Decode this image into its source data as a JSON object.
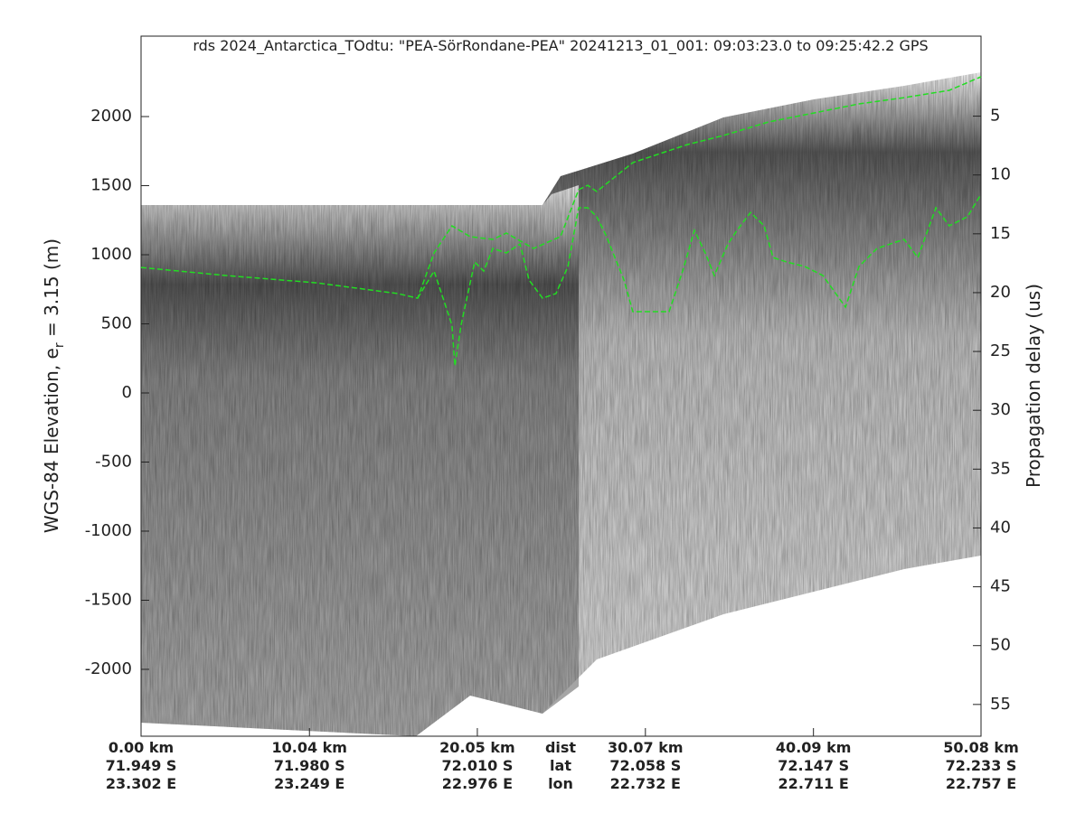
{
  "chart_data": {
    "type": "line",
    "title": "rds 2024_Antarctica_TOdtu: \"PEA-SörRondane-PEA\"  20241213_01_001: 09:03:23.0 to 09:25:42.2 GPS",
    "ylabel": {
      "text": "WGS-84 Elevation, e",
      "sub": "r",
      "rest": " = 3.15 (m)"
    },
    "y2label": "Propagation delay (us)",
    "xlim": [
      0,
      50.08
    ],
    "xticks": [
      {
        "value": 0,
        "label": "0.00 km"
      },
      {
        "value": 10.04,
        "label": "10.04 km"
      },
      {
        "value": 20.05,
        "label": "20.05 km"
      },
      {
        "value": 30.07,
        "label": "30.07 km"
      },
      {
        "value": 40.09,
        "label": "40.09 km"
      },
      {
        "value": 50.08,
        "label": "50.08 km"
      }
    ],
    "lat_labels": [
      "71.949 S",
      "71.980 S",
      "72.010 S",
      "72.058 S",
      "72.147 S",
      "72.233 S"
    ],
    "lon_labels": [
      "23.302 E",
      "23.249 E",
      "22.976 E",
      "22.732 E",
      "22.711 E",
      "22.757 E"
    ],
    "row_names": [
      "dist",
      "lat",
      "lon"
    ],
    "ylim": [
      -2484,
      2582
    ],
    "yticks": [
      -2000,
      -1500,
      -1000,
      -500,
      0,
      500,
      1000,
      1500,
      2000
    ],
    "y2lim": [
      57.7,
      -1.8
    ],
    "y2ticks": [
      5,
      10,
      15,
      20,
      25,
      30,
      35,
      40,
      45,
      50,
      55
    ],
    "series": [
      {
        "name": "surface",
        "color": "#22dd22",
        "dashed": true,
        "x": [
          0,
          5.07,
          10.46,
          15.31,
          16.49,
          17.47,
          18.54,
          19.62,
          20.97,
          21.78,
          23.4,
          25.01,
          26.09,
          26.63,
          27.17,
          29.32,
          32.56,
          34.72,
          37.41,
          40.11,
          42.8,
          45.5,
          48.19,
          50.08
        ],
        "values": [
          908,
          850,
          797,
          719,
          686,
          1013,
          1209,
          1131,
          1111,
          1157,
          1046,
          1131,
          1471,
          1503,
          1458,
          1667,
          1797,
          1863,
          1961,
          2026,
          2092,
          2137,
          2190,
          2288
        ]
      },
      {
        "name": "bed",
        "color": "#22dd22",
        "dashed": true,
        "x": [
          16.49,
          17.47,
          18.54,
          18.71,
          19.08,
          19.89,
          20.43,
          20.97,
          21.78,
          22.59,
          23.13,
          23.94,
          24.74,
          25.45,
          26.09,
          26.63,
          27.17,
          27.71,
          28.79,
          29.32,
          30.4,
          31.48,
          32.29,
          32.99,
          33.64,
          34.18,
          34.99,
          35.53,
          36.34,
          37.15,
          37.68,
          38.49,
          39.57,
          40.65,
          42.0,
          42.8,
          43.88,
          45.5,
          46.31,
          47.39,
          48.19,
          49.27,
          50.08
        ],
        "values": [
          686,
          882,
          490,
          196,
          490,
          948,
          882,
          1046,
          1013,
          1078,
          817,
          686,
          719,
          915,
          1340,
          1340,
          1275,
          1144,
          817,
          588,
          588,
          588,
          882,
          1176,
          1013,
          850,
          1078,
          1176,
          1307,
          1209,
          980,
          948,
          915,
          850,
          621,
          915,
          1046,
          1111,
          980,
          1340,
          1209,
          1275,
          1438
        ]
      }
    ]
  }
}
